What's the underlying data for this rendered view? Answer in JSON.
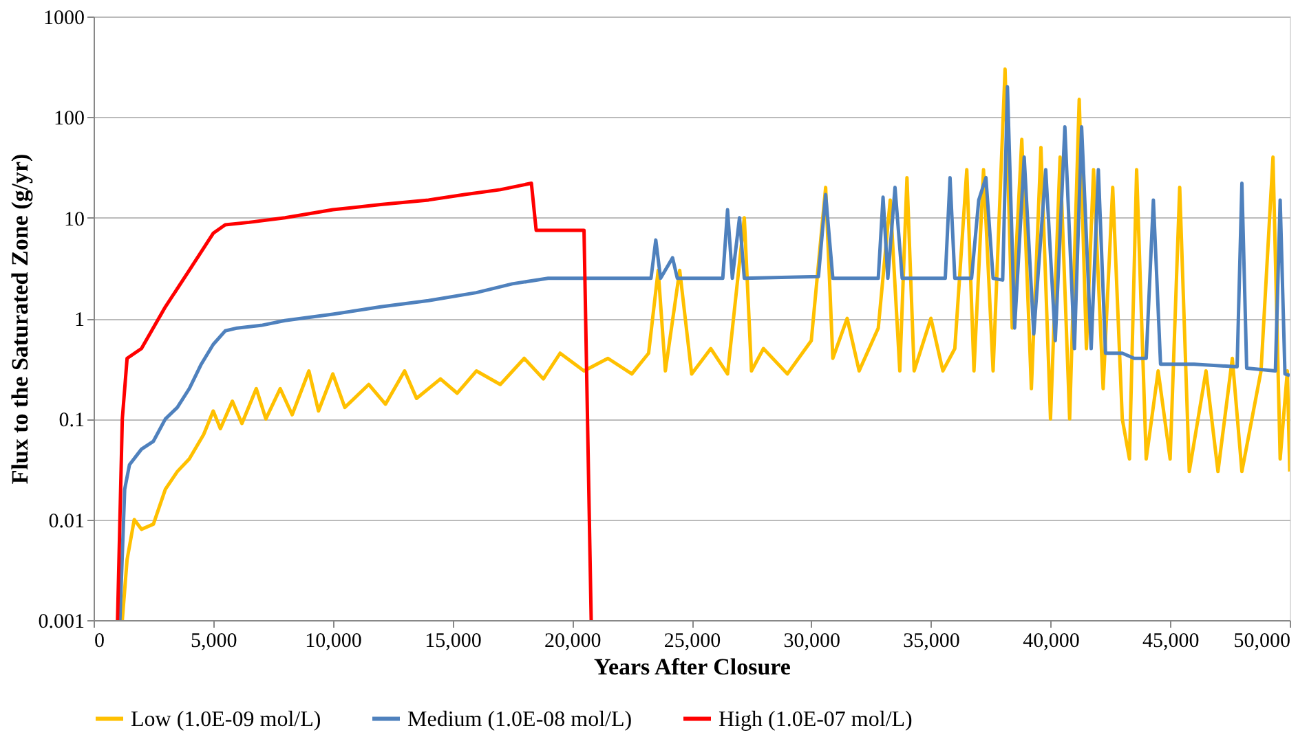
{
  "chart_data": {
    "type": "line",
    "xlabel": "Years After Closure",
    "ylabel": "Flux to the Saturated Zone (g/yr)",
    "log": "y",
    "grid": "y",
    "legend": "bottom",
    "line_style": "solid",
    "marker": "none",
    "xlim": [
      0,
      50000
    ],
    "xticks": [
      0,
      {
        "value": 5000,
        "label": "5,000"
      },
      {
        "value": 10000,
        "label": "10,000"
      },
      {
        "value": 15000,
        "label": "15,000"
      },
      {
        "value": 20000,
        "label": "20,000"
      },
      {
        "value": 25000,
        "label": "25,000"
      },
      {
        "value": 30000,
        "label": "30,000"
      },
      {
        "value": 35000,
        "label": "35,000"
      },
      {
        "value": 40000,
        "label": "40,000"
      },
      {
        "value": 45000,
        "label": "45,000"
      },
      {
        "value": 50000,
        "label": "50,000"
      }
    ],
    "ylim": [
      0.001,
      1000
    ],
    "yticks": [
      0.001,
      0.01,
      0.1,
      1,
      10,
      100,
      1000
    ],
    "series": [
      {
        "name": "Low (1.0E-09 mol/L)",
        "color": "#ffc000",
        "x": [
          1200,
          1400,
          1700,
          2000,
          2500,
          3000,
          3500,
          4000,
          4600,
          5000,
          5300,
          5800,
          6200,
          6800,
          7200,
          7800,
          8300,
          9000,
          9400,
          10000,
          10500,
          11500,
          12200,
          13000,
          13500,
          14500,
          15200,
          16000,
          17000,
          18000,
          18800,
          19500,
          20500,
          21500,
          22500,
          23200,
          23600,
          23900,
          24500,
          25000,
          25800,
          26500,
          27200,
          27500,
          28000,
          29000,
          30000,
          30600,
          30900,
          31500,
          32000,
          32800,
          33300,
          33700,
          34000,
          34300,
          35000,
          35500,
          36000,
          36500,
          36800,
          37200,
          37600,
          38100,
          38400,
          38800,
          39200,
          39600,
          40000,
          40400,
          40800,
          41200,
          41500,
          41800,
          42200,
          42600,
          43000,
          43300,
          43600,
          44000,
          44500,
          45000,
          45400,
          45800,
          46500,
          47000,
          47600,
          48000,
          48800,
          49300,
          49600,
          49900,
          50000
        ],
        "values": [
          0.001,
          0.004,
          0.01,
          0.008,
          0.009,
          0.02,
          0.03,
          0.04,
          0.07,
          0.12,
          0.08,
          0.15,
          0.09,
          0.2,
          0.1,
          0.2,
          0.11,
          0.3,
          0.12,
          0.28,
          0.13,
          0.22,
          0.14,
          0.3,
          0.16,
          0.25,
          0.18,
          0.3,
          0.22,
          0.4,
          0.25,
          0.45,
          0.3,
          0.4,
          0.28,
          0.45,
          3,
          0.3,
          3,
          0.28,
          0.5,
          0.28,
          10,
          0.3,
          0.5,
          0.28,
          0.6,
          20,
          0.4,
          1,
          0.3,
          0.8,
          15,
          0.3,
          25,
          0.3,
          1,
          0.3,
          0.5,
          30,
          0.3,
          30,
          0.3,
          300,
          0.8,
          60,
          0.2,
          50,
          0.1,
          40,
          0.1,
          150,
          0.5,
          30,
          0.2,
          20,
          0.1,
          0.04,
          30,
          0.04,
          0.3,
          0.04,
          20,
          0.03,
          0.3,
          0.03,
          0.4,
          0.03,
          0.3,
          40,
          0.04,
          0.3,
          0.03
        ]
      },
      {
        "name": "Medium (1.0E-08 mol/L)",
        "color": "#4f81bd",
        "x": [
          1100,
          1300,
          1500,
          2000,
          2500,
          3000,
          3500,
          4000,
          4500,
          5000,
          5500,
          6000,
          7000,
          8000,
          10000,
          12000,
          14000,
          16000,
          17500,
          19000,
          23300,
          23500,
          23700,
          24200,
          24400,
          26300,
          26500,
          26700,
          27000,
          27200,
          30300,
          30600,
          30900,
          32800,
          33000,
          33200,
          33500,
          33800,
          35600,
          35800,
          36000,
          36700,
          37000,
          37300,
          37600,
          38000,
          38200,
          38500,
          38900,
          39300,
          39800,
          40200,
          40600,
          41000,
          41300,
          41700,
          42000,
          42300,
          43000,
          43500,
          44000,
          44300,
          44600,
          46000,
          47800,
          48000,
          48200,
          49400,
          49600,
          49800,
          50000
        ],
        "values": [
          0.001,
          0.02,
          0.035,
          0.05,
          0.06,
          0.1,
          0.13,
          0.2,
          0.35,
          0.55,
          0.75,
          0.8,
          0.85,
          0.95,
          1.1,
          1.3,
          1.5,
          1.8,
          2.2,
          2.5,
          2.5,
          6,
          2.5,
          4,
          2.5,
          2.5,
          12,
          2.5,
          10,
          2.5,
          2.6,
          17,
          2.5,
          2.5,
          16,
          2.5,
          20,
          2.5,
          2.5,
          25,
          2.5,
          2.5,
          15,
          25,
          2.5,
          2.4,
          200,
          0.8,
          40,
          0.7,
          30,
          0.6,
          80,
          0.5,
          80,
          0.5,
          30,
          0.45,
          0.45,
          0.4,
          0.4,
          15,
          0.35,
          0.35,
          0.33,
          22,
          0.32,
          0.3,
          15,
          0.28,
          0.27
        ]
      },
      {
        "name": "High (1.0E-07 mol/L)",
        "color": "#ff0000",
        "x": [
          1000,
          1200,
          1400,
          2000,
          3000,
          4000,
          5000,
          5500,
          6500,
          8000,
          10000,
          12000,
          14000,
          15500,
          17000,
          18300,
          18500,
          20500,
          20800
        ],
        "values": [
          0.001,
          0.1,
          0.4,
          0.5,
          1.3,
          3,
          7,
          8.5,
          9,
          10,
          12,
          13.5,
          15,
          17,
          19,
          22,
          7.5,
          7.5,
          0.001
        ]
      }
    ]
  }
}
